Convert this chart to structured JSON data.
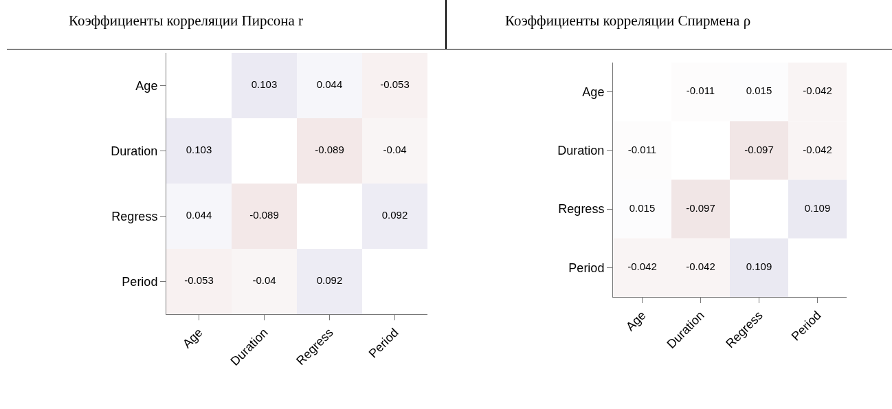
{
  "chart_data": [
    {
      "type": "heatmap",
      "title": "Коэффициенты корреляции Пирсона r",
      "categories": [
        "Age",
        "Duration",
        "Regress",
        "Period"
      ],
      "y_categories": [
        "Age",
        "Duration",
        "Regress",
        "Period"
      ],
      "data_labels": true,
      "cells": [
        [
          null,
          0.103,
          0.044,
          -0.053
        ],
        [
          0.103,
          null,
          -0.089,
          -0.04
        ],
        [
          0.044,
          -0.089,
          null,
          0.092
        ],
        [
          -0.053,
          -0.04,
          0.092,
          null
        ]
      ]
    },
    {
      "type": "heatmap",
      "title": "Коэффициенты корреляции Спирмена ρ",
      "categories": [
        "Age",
        "Duration",
        "Regress",
        "Period"
      ],
      "y_categories": [
        "Age",
        "Duration",
        "Regress",
        "Period"
      ],
      "data_labels": true,
      "cells": [
        [
          null,
          -0.011,
          0.015,
          -0.042
        ],
        [
          -0.011,
          null,
          -0.097,
          -0.042
        ],
        [
          0.015,
          -0.097,
          null,
          0.109
        ],
        [
          -0.042,
          -0.042,
          0.109,
          null
        ]
      ]
    }
  ]
}
